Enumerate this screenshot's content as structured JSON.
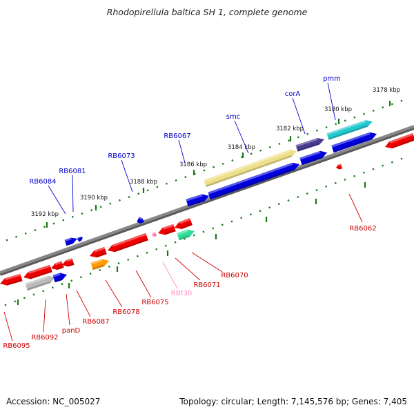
{
  "title": "Rhodopirellula baltica SH 1, complete genome",
  "footer": {
    "accession": "Accession: NC_005027",
    "topology": "Topology: circular; Length: 7,145,576 bp; Genes: 7,405"
  },
  "ticks": [
    "3178 kbp",
    "3180 kbp",
    "3182 kbp",
    "3184 kbp",
    "3186 kbp",
    "3188 kbp",
    "3190 kbp",
    "3192 kbp"
  ],
  "labels_forward": [
    "pmm",
    "corA",
    "smc",
    "RB6067",
    "RB6073",
    "RB6081",
    "RB6084"
  ],
  "labels_reverse": [
    "RB6062",
    "RB6070",
    "RB6071",
    "RBt30",
    "RB6075",
    "RB6078",
    "RB6087",
    "panD",
    "RB6092",
    "RB6095"
  ],
  "colors": {
    "forward": "#0000dd",
    "reverse": "#ee0000",
    "label_forward": "#0000cc",
    "label_reverse": "#cc0000",
    "label_rna": "#ff88bb",
    "backbone": "#888888",
    "tick": "#1a7a1a"
  }
}
